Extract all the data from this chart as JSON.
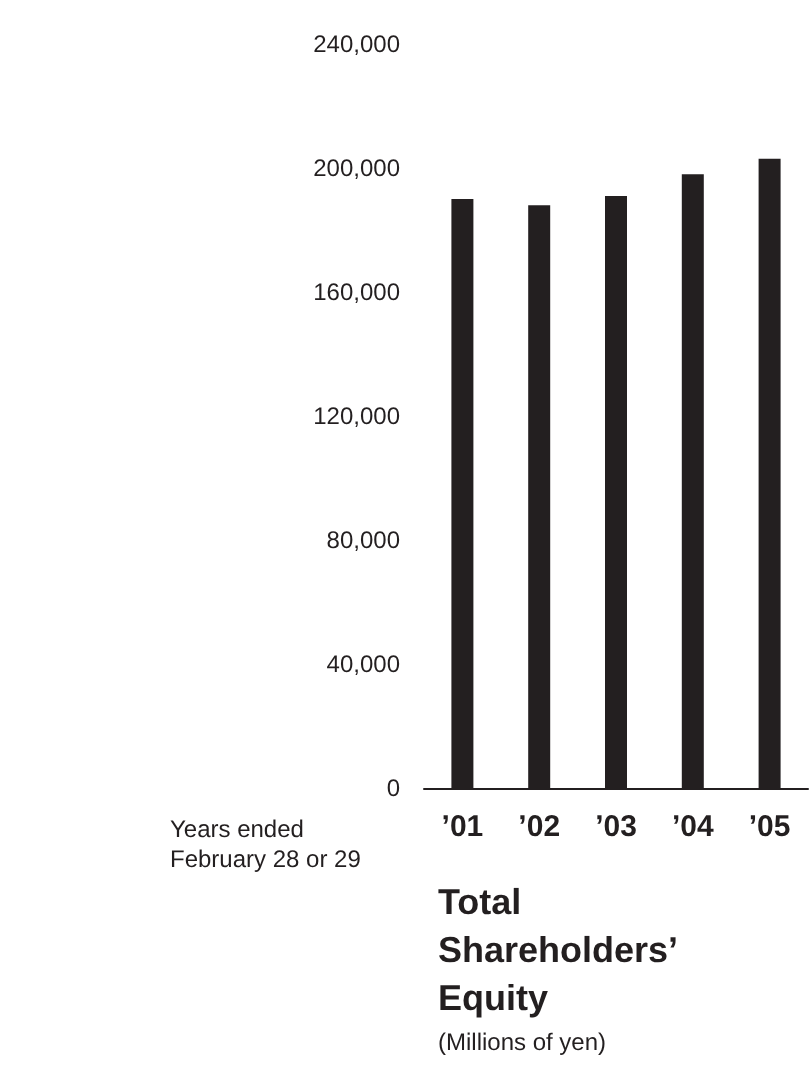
{
  "chart_data": {
    "type": "bar",
    "title": "Total Shareholders’ Equity",
    "subtitle": "(Millions of yen)",
    "xlabel": "Years ended February 28 or 29",
    "categories": [
      "’01",
      "’02",
      "’03",
      "’04",
      "’05"
    ],
    "values": [
      190000,
      188000,
      191000,
      198000,
      203000
    ],
    "color": "#231f20",
    "ylim": [
      0,
      240000
    ],
    "yticks": [
      {
        "value": 0,
        "label": "0"
      },
      {
        "value": 40000,
        "label": "40,000"
      },
      {
        "value": 80000,
        "label": "80,000"
      },
      {
        "value": 120000,
        "label": "120,000"
      },
      {
        "value": 160000,
        "label": "160,000"
      },
      {
        "value": 200000,
        "label": "200,000"
      },
      {
        "value": 240000,
        "label": "240,000"
      }
    ],
    "grid": false
  }
}
